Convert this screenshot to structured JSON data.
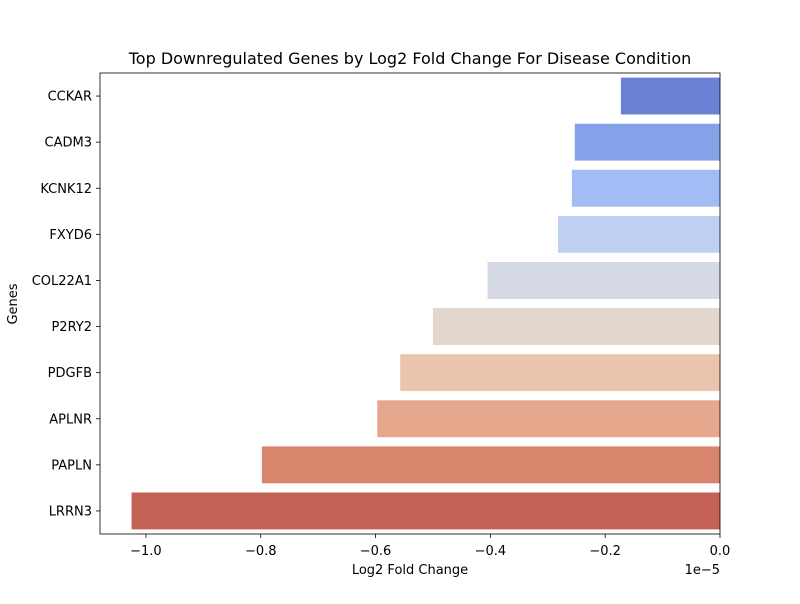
{
  "chart_data": {
    "type": "bar",
    "orientation": "horizontal",
    "title": "Top Downregulated Genes by Log2 Fold Change For Disease Condition",
    "xlabel": "Log2 Fold Change",
    "ylabel": "Genes",
    "x_offset_label": "1e−5",
    "x_scale": 1e-05,
    "xlim": [
      -1.08,
      0.0
    ],
    "x_ticks": [
      -1.0,
      -0.8,
      -0.6,
      -0.4,
      -0.2,
      0.0
    ],
    "x_tick_labels": [
      "−1.0",
      "−0.8",
      "−0.6",
      "−0.4",
      "−0.2",
      "0.0"
    ],
    "grid": false,
    "categories": [
      "CCKAR",
      "CADM3",
      "KCNK12",
      "FXYD6",
      "COL22A1",
      "P2RY2",
      "PDGFB",
      "APLNR",
      "PAPLN",
      "LRRN3"
    ],
    "values": [
      -1.726e-06,
      -2.53e-06,
      -2.58e-06,
      -2.82e-06,
      -4.05e-06,
      -5e-06,
      -5.57e-06,
      -5.97e-06,
      -7.98e-06,
      -1.025e-05
    ],
    "colors": [
      "#6b81d6",
      "#85a2e8",
      "#a2bcf5",
      "#bdd0f1",
      "#d4d9e4",
      "#e3d7cd",
      "#ebc4ae",
      "#e6a88c",
      "#d8856d",
      "#c46155"
    ]
  }
}
